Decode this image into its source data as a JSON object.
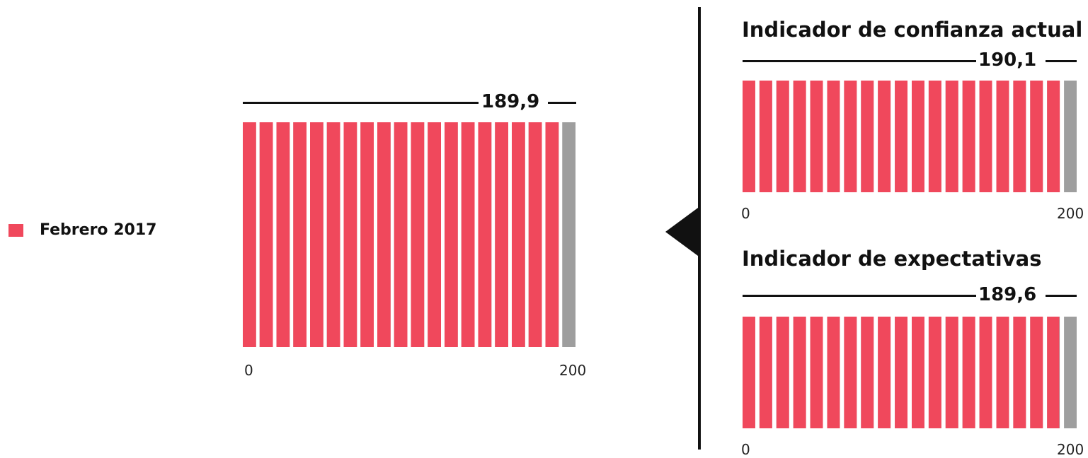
{
  "legend": {
    "label": "Febrero 2017",
    "color": "#f0485c"
  },
  "colors": {
    "filled": "#f0485c",
    "empty": "#9e9e9e",
    "marker": "#111111"
  },
  "chart_data": [
    {
      "type": "bar",
      "title": "",
      "value": 189.9,
      "value_label": "189,9",
      "min": 0,
      "max": 200,
      "min_label": "0",
      "max_label": "200",
      "segments": 20,
      "series": [
        {
          "name": "Febrero 2017",
          "values": [
            189.9
          ]
        }
      ]
    },
    {
      "type": "bar",
      "title": "Indicador de confianza actual",
      "value": 190.1,
      "value_label": "190,1",
      "min": 0,
      "max": 200,
      "min_label": "0",
      "max_label": "200",
      "segments": 20,
      "series": [
        {
          "name": "Febrero 2017",
          "values": [
            190.1
          ]
        }
      ]
    },
    {
      "type": "bar",
      "title": "Indicador de expectativas",
      "value": 189.6,
      "value_label": "189,6",
      "min": 0,
      "max": 200,
      "min_label": "0",
      "max_label": "200",
      "segments": 20,
      "series": [
        {
          "name": "Febrero 2017",
          "values": [
            189.6
          ]
        }
      ]
    }
  ]
}
